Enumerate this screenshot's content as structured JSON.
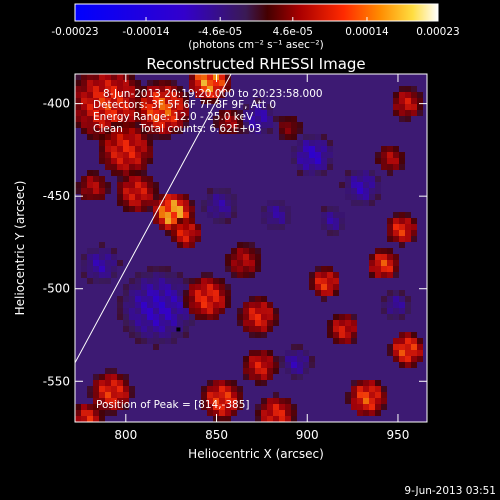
{
  "colorbar": {
    "tick_labels": [
      "-0.00023",
      "-0.00014",
      "-4.6e-05",
      "4.6e-05",
      "0.00014",
      "0.00023"
    ],
    "tick_values": [
      -0.00023,
      -0.00014,
      -4.6e-05,
      4.6e-05,
      0.00014,
      0.00023
    ],
    "range": [
      -0.00023,
      0.00023
    ],
    "units_label": "(photons cm⁻² s⁻¹ asec⁻²)"
  },
  "chart_data": {
    "type": "heatmap",
    "title": "Reconstructed RHESSI Image",
    "xlabel": "Heliocentric X (arcsec)",
    "ylabel": "Heliocentric Y (arcsec)",
    "xlim": [
      772,
      966
    ],
    "ylim": [
      -572,
      -384
    ],
    "x_ticks": [
      800,
      850,
      900,
      950
    ],
    "y_ticks": [
      -400,
      -450,
      -500,
      -550
    ],
    "x_tick_labels": [
      "800",
      "850",
      "900",
      "950"
    ],
    "y_tick_labels": [
      "-400",
      "-450",
      "-500",
      "-550"
    ],
    "annotations": [
      "8-Jun-2013 20:19:20.000 to 20:23:58.000",
      "Detectors: 3F 5F 6F 7F 8F 9F, Att 0",
      "Energy Range: 12.0 - 25.0 keV",
      "Clean     Total counts: 6.62E+03"
    ],
    "peak_label": "Position of Peak = [814,-385]",
    "peak": [
      814,
      -385
    ],
    "limb_line": [
      [
        772,
        -540
      ],
      [
        858,
        -384
      ]
    ],
    "marker": [
      829,
      -522
    ],
    "hot_regions": [
      {
        "x": 790,
        "y": -400,
        "r": 22,
        "v": 0.00013
      },
      {
        "x": 820,
        "y": -403,
        "r": 16,
        "v": 0.00016
      },
      {
        "x": 846,
        "y": -388,
        "r": 12,
        "v": 0.0002
      },
      {
        "x": 800,
        "y": -425,
        "r": 16,
        "v": 0.00012
      },
      {
        "x": 806,
        "y": -448,
        "r": 12,
        "v": 0.00011
      },
      {
        "x": 826,
        "y": -459,
        "r": 12,
        "v": 0.00022
      },
      {
        "x": 833,
        "y": -470,
        "r": 9,
        "v": 0.00012
      },
      {
        "x": 782,
        "y": -445,
        "r": 9,
        "v": 8e-05
      },
      {
        "x": 857,
        "y": -410,
        "r": 8,
        "v": 7e-05
      },
      {
        "x": 845,
        "y": -505,
        "r": 13,
        "v": 0.00013
      },
      {
        "x": 865,
        "y": -485,
        "r": 10,
        "v": 8e-05
      },
      {
        "x": 873,
        "y": -515,
        "r": 11,
        "v": 0.00012
      },
      {
        "x": 874,
        "y": -542,
        "r": 10,
        "v": 0.00011
      },
      {
        "x": 853,
        "y": -560,
        "r": 12,
        "v": 0.00014
      },
      {
        "x": 883,
        "y": -568,
        "r": 11,
        "v": 0.00012
      },
      {
        "x": 792,
        "y": -556,
        "r": 12,
        "v": 0.00013
      },
      {
        "x": 779,
        "y": -570,
        "r": 9,
        "v": 0.00012
      },
      {
        "x": 910,
        "y": -497,
        "r": 9,
        "v": 0.00013
      },
      {
        "x": 920,
        "y": -522,
        "r": 9,
        "v": 0.00011
      },
      {
        "x": 942,
        "y": -487,
        "r": 9,
        "v": 0.00014
      },
      {
        "x": 952,
        "y": -468,
        "r": 9,
        "v": 0.00013
      },
      {
        "x": 955,
        "y": -533,
        "r": 10,
        "v": 0.00015
      },
      {
        "x": 933,
        "y": -559,
        "r": 11,
        "v": 0.00015
      },
      {
        "x": 946,
        "y": -430,
        "r": 8,
        "v": 8e-05
      },
      {
        "x": 955,
        "y": -400,
        "r": 9,
        "v": 0.0001
      },
      {
        "x": 890,
        "y": -413,
        "r": 7,
        "v": 5e-05
      }
    ],
    "cold_regions": [
      {
        "x": 818,
        "y": -510,
        "r": 22,
        "v": -0.00011
      },
      {
        "x": 786,
        "y": -487,
        "r": 11,
        "v": -9e-05
      },
      {
        "x": 873,
        "y": -408,
        "r": 10,
        "v": -0.0001
      },
      {
        "x": 903,
        "y": -428,
        "r": 12,
        "v": -0.00012
      },
      {
        "x": 930,
        "y": -445,
        "r": 11,
        "v": -0.0001
      },
      {
        "x": 914,
        "y": -463,
        "r": 8,
        "v": -8e-05
      },
      {
        "x": 894,
        "y": -540,
        "r": 9,
        "v": -9e-05
      },
      {
        "x": 883,
        "y": -460,
        "r": 9,
        "v": -8e-05
      },
      {
        "x": 949,
        "y": -509,
        "r": 8,
        "v": -8e-05
      },
      {
        "x": 852,
        "y": -455,
        "r": 10,
        "v": -8e-05
      }
    ]
  },
  "footer": {
    "timestamp": "9-Jun-2013 03:51"
  },
  "palette": {
    "background": "#000000",
    "limb_line": "#ffffff",
    "marker": "#000000"
  }
}
